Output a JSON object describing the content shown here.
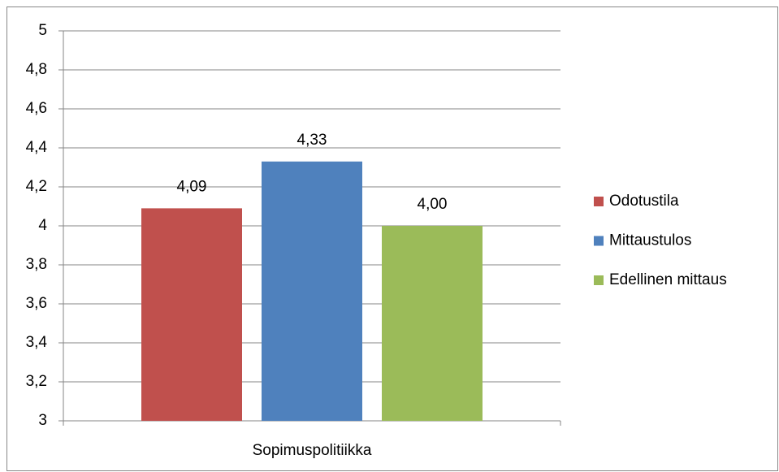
{
  "chart_data": {
    "type": "bar",
    "categories": [
      "Sopimuspolitiikka"
    ],
    "series": [
      {
        "name": "Odotustila",
        "color": "#c0504d",
        "values": [
          4.09
        ],
        "value_labels": [
          "4,09"
        ]
      },
      {
        "name": "Mittaustulos",
        "color": "#4f81bd",
        "values": [
          4.33
        ],
        "value_labels": [
          "4,33"
        ]
      },
      {
        "name": "Edellinen mittaus",
        "color": "#9bbb59",
        "values": [
          4.0
        ],
        "value_labels": [
          "4,00"
        ]
      }
    ],
    "ylim": [
      3,
      5
    ],
    "yticks": [
      3,
      {
        "value": 3.2,
        "label": "3,2"
      },
      {
        "value": 3.4,
        "label": "3,4"
      },
      {
        "value": 3.6,
        "label": "3,6"
      },
      {
        "value": 3.8,
        "label": "3,8"
      },
      4,
      {
        "value": 4.2,
        "label": "4,2"
      },
      {
        "value": 4.4,
        "label": "4,4"
      },
      {
        "value": 4.6,
        "label": "4,6"
      },
      {
        "value": 4.8,
        "label": "4,8"
      },
      5
    ],
    "grid": true,
    "legend": "right"
  }
}
